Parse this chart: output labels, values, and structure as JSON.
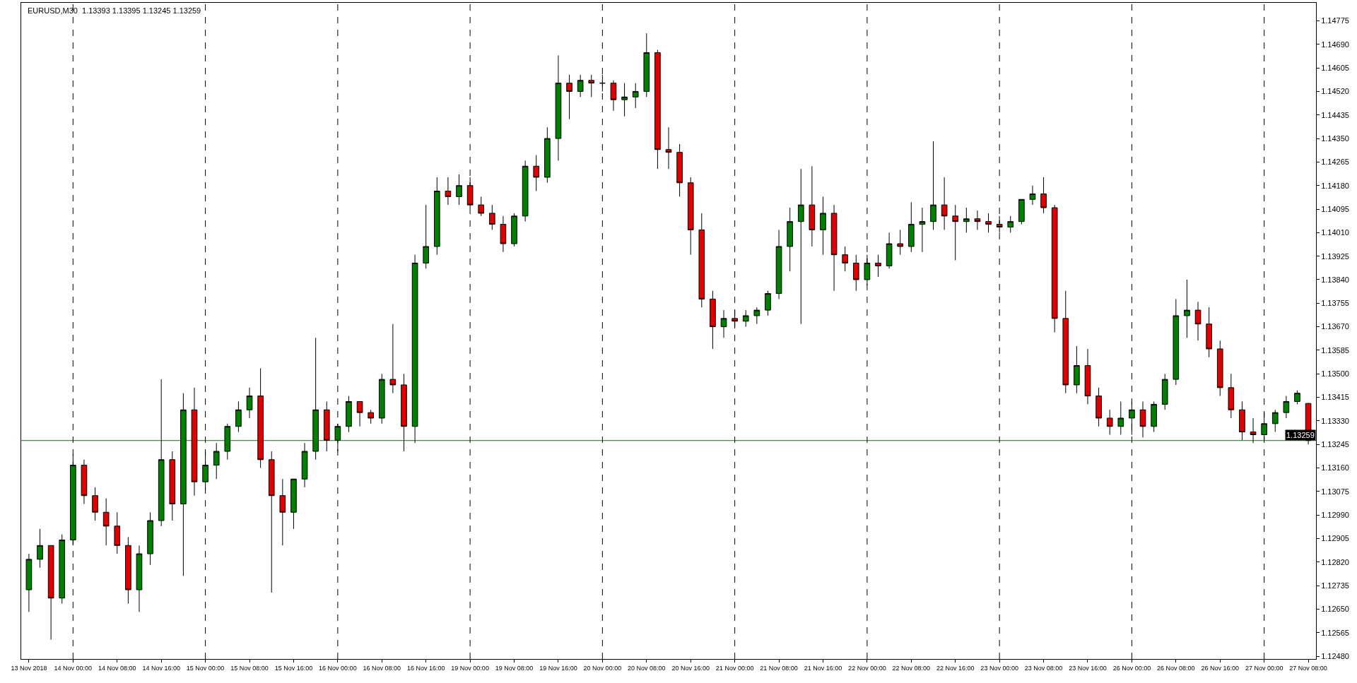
{
  "chart_data": {
    "type": "candlestick",
    "title": "EURUSD,M30  1.13393 1.13395 1.13245 1.13259",
    "categories": [
      "13 Nov 2018",
      null,
      null,
      null,
      "14 Nov 00:00",
      null,
      null,
      null,
      "14 Nov 08:00",
      null,
      null,
      null,
      "14 Nov 16:00",
      null,
      null,
      null,
      "15 Nov 00:00",
      null,
      null,
      null,
      "15 Nov 08:00",
      null,
      null,
      null,
      "15 Nov 16:00",
      null,
      null,
      null,
      "16 Nov 00:00",
      null,
      null,
      null,
      "16 Nov 08:00",
      null,
      null,
      null,
      "16 Nov 16:00",
      null,
      null,
      null,
      "19 Nov 00:00",
      null,
      null,
      null,
      "19 Nov 08:00",
      null,
      null,
      null,
      "19 Nov 16:00",
      null,
      null,
      null,
      "20 Nov 00:00",
      null,
      null,
      null,
      "20 Nov 08:00",
      null,
      null,
      null,
      "20 Nov 16:00",
      null,
      null,
      null,
      "21 Nov 00:00",
      null,
      null,
      null,
      "21 Nov 08:00",
      null,
      null,
      null,
      "21 Nov 16:00",
      null,
      null,
      null,
      "22 Nov 00:00",
      null,
      null,
      null,
      "22 Nov 08:00",
      null,
      null,
      null,
      "22 Nov 16:00",
      null,
      null,
      null,
      "23 Nov 00:00",
      null,
      null,
      null,
      "23 Nov 08:00",
      null,
      null,
      null,
      "23 Nov 16:00",
      null,
      null,
      null,
      "26 Nov 00:00",
      null,
      null,
      null,
      "26 Nov 08:00",
      null,
      null,
      null,
      "26 Nov 16:00",
      null,
      null,
      null,
      "27 Nov 00:00",
      null,
      null,
      null,
      "27 Nov 08:00"
    ],
    "ohlc": [
      [
        1.1272,
        1.1285,
        1.1264,
        1.1283
      ],
      [
        1.1283,
        1.1294,
        1.128,
        1.1288
      ],
      [
        1.1288,
        1.1288,
        1.1254,
        1.1269
      ],
      [
        1.1269,
        1.1292,
        1.1267,
        1.129
      ],
      [
        1.129,
        1.1321,
        1.1288,
        1.1317
      ],
      [
        1.1317,
        1.1319,
        1.1303,
        1.1306
      ],
      [
        1.1306,
        1.1309,
        1.1297,
        1.13
      ],
      [
        1.13,
        1.1305,
        1.1288,
        1.1295
      ],
      [
        1.1295,
        1.13,
        1.1285,
        1.1288
      ],
      [
        1.1288,
        1.1291,
        1.1267,
        1.1272
      ],
      [
        1.1272,
        1.1288,
        1.1264,
        1.1285
      ],
      [
        1.1285,
        1.13,
        1.1281,
        1.1297
      ],
      [
        1.1297,
        1.1348,
        1.1295,
        1.1319
      ],
      [
        1.1319,
        1.1322,
        1.1297,
        1.1303
      ],
      [
        1.1303,
        1.1343,
        1.1277,
        1.1337
      ],
      [
        1.1337,
        1.1345,
        1.1306,
        1.1311
      ],
      [
        1.1311,
        1.1322,
        1.1308,
        1.1317
      ],
      [
        1.1317,
        1.1325,
        1.1312,
        1.1322
      ],
      [
        1.1322,
        1.1332,
        1.1319,
        1.1331
      ],
      [
        1.1331,
        1.134,
        1.1329,
        1.1337
      ],
      [
        1.1337,
        1.1345,
        1.1334,
        1.1342
      ],
      [
        1.1342,
        1.1352,
        1.1316,
        1.1319
      ],
      [
        1.1319,
        1.1322,
        1.1271,
        1.1306
      ],
      [
        1.1306,
        1.1312,
        1.1288,
        1.13
      ],
      [
        1.13,
        1.1312,
        1.1294,
        1.1312
      ],
      [
        1.1312,
        1.1325,
        1.1309,
        1.1322
      ],
      [
        1.1322,
        1.1363,
        1.1319,
        1.1337
      ],
      [
        1.1337,
        1.134,
        1.1322,
        1.1326
      ],
      [
        1.1326,
        1.1332,
        1.1322,
        1.1331
      ],
      [
        1.1331,
        1.1342,
        1.1329,
        1.134
      ],
      [
        1.134,
        1.134,
        1.1331,
        1.1336
      ],
      [
        1.1336,
        1.1337,
        1.1332,
        1.1334
      ],
      [
        1.1334,
        1.135,
        1.1332,
        1.1348
      ],
      [
        1.1348,
        1.1368,
        1.1343,
        1.1346
      ],
      [
        1.1346,
        1.135,
        1.1322,
        1.1331
      ],
      [
        1.1331,
        1.1393,
        1.1325,
        1.139
      ],
      [
        1.139,
        1.1411,
        1.1388,
        1.1396
      ],
      [
        1.1396,
        1.1421,
        1.1393,
        1.1416
      ],
      [
        1.1416,
        1.1421,
        1.1411,
        1.1414
      ],
      [
        1.1414,
        1.1422,
        1.1411,
        1.1418
      ],
      [
        1.1418,
        1.1421,
        1.141,
        1.1411
      ],
      [
        1.1411,
        1.1414,
        1.1407,
        1.1408
      ],
      [
        1.1408,
        1.1411,
        1.1402,
        1.1404
      ],
      [
        1.1404,
        1.1407,
        1.1394,
        1.1397
      ],
      [
        1.1397,
        1.1408,
        1.1396,
        1.1407
      ],
      [
        1.1407,
        1.1427,
        1.1405,
        1.1425
      ],
      [
        1.1425,
        1.1429,
        1.1416,
        1.1421
      ],
      [
        1.1421,
        1.1439,
        1.1419,
        1.1435
      ],
      [
        1.1435,
        1.1465,
        1.1427,
        1.1455
      ],
      [
        1.1455,
        1.1458,
        1.1442,
        1.1452
      ],
      [
        1.1452,
        1.1458,
        1.145,
        1.1456
      ],
      [
        1.1456,
        1.1458,
        1.145,
        1.1455
      ],
      [
        1.1455,
        1.1458,
        1.1452,
        1.1455
      ],
      [
        1.1455,
        1.1456,
        1.1445,
        1.1449
      ],
      [
        1.1449,
        1.1455,
        1.1443,
        1.145
      ],
      [
        1.145,
        1.1455,
        1.1446,
        1.1452
      ],
      [
        1.1452,
        1.1473,
        1.145,
        1.1466
      ],
      [
        1.1466,
        1.1467,
        1.1424,
        1.1431
      ],
      [
        1.1431,
        1.1439,
        1.1424,
        1.143
      ],
      [
        1.143,
        1.1433,
        1.1414,
        1.1419
      ],
      [
        1.1419,
        1.1421,
        1.1393,
        1.1402
      ],
      [
        1.1402,
        1.1408,
        1.1374,
        1.1377
      ],
      [
        1.1377,
        1.138,
        1.1359,
        1.1367
      ],
      [
        1.1367,
        1.1373,
        1.1363,
        1.137
      ],
      [
        1.137,
        1.1373,
        1.1367,
        1.1369
      ],
      [
        1.1369,
        1.1373,
        1.1367,
        1.1371
      ],
      [
        1.1371,
        1.1374,
        1.1368,
        1.1373
      ],
      [
        1.1373,
        1.138,
        1.1371,
        1.1379
      ],
      [
        1.1379,
        1.1402,
        1.1377,
        1.1396
      ],
      [
        1.1396,
        1.141,
        1.1387,
        1.1405
      ],
      [
        1.1405,
        1.1424,
        1.1368,
        1.1411
      ],
      [
        1.1411,
        1.1425,
        1.1396,
        1.1402
      ],
      [
        1.1402,
        1.1414,
        1.1393,
        1.1408
      ],
      [
        1.1408,
        1.1411,
        1.138,
        1.1393
      ],
      [
        1.1393,
        1.1396,
        1.1387,
        1.139
      ],
      [
        1.139,
        1.1393,
        1.138,
        1.1384
      ],
      [
        1.1384,
        1.1393,
        1.1382,
        1.139
      ],
      [
        1.139,
        1.1393,
        1.1385,
        1.1389
      ],
      [
        1.1389,
        1.1401,
        1.1388,
        1.1397
      ],
      [
        1.1397,
        1.1402,
        1.1393,
        1.1396
      ],
      [
        1.1396,
        1.1412,
        1.1394,
        1.1404
      ],
      [
        1.1404,
        1.141,
        1.1394,
        1.1405
      ],
      [
        1.1405,
        1.1434,
        1.1402,
        1.1411
      ],
      [
        1.1411,
        1.1421,
        1.1402,
        1.1407
      ],
      [
        1.1407,
        1.1411,
        1.1391,
        1.1405
      ],
      [
        1.1405,
        1.141,
        1.1401,
        1.1406
      ],
      [
        1.1406,
        1.1409,
        1.1402,
        1.1405
      ],
      [
        1.1405,
        1.1408,
        1.1401,
        1.1404
      ],
      [
        1.1404,
        1.1407,
        1.1401,
        1.1403
      ],
      [
        1.1403,
        1.1407,
        1.1401,
        1.1405
      ],
      [
        1.1405,
        1.1413,
        1.1404,
        1.1413
      ],
      [
        1.1413,
        1.1418,
        1.1411,
        1.1415
      ],
      [
        1.1415,
        1.1421,
        1.1408,
        1.141
      ],
      [
        1.141,
        1.1411,
        1.1365,
        1.137
      ],
      [
        1.137,
        1.138,
        1.1343,
        1.1346
      ],
      [
        1.1346,
        1.136,
        1.1343,
        1.1353
      ],
      [
        1.1353,
        1.1359,
        1.1339,
        1.1342
      ],
      [
        1.1342,
        1.1345,
        1.1331,
        1.1334
      ],
      [
        1.1334,
        1.1337,
        1.1328,
        1.1331
      ],
      [
        1.1331,
        1.134,
        1.1328,
        1.1334
      ],
      [
        1.1334,
        1.134,
        1.1328,
        1.1337
      ],
      [
        1.1337,
        1.134,
        1.1327,
        1.1331
      ],
      [
        1.1331,
        1.134,
        1.1329,
        1.1339
      ],
      [
        1.1339,
        1.135,
        1.1337,
        1.1348
      ],
      [
        1.1348,
        1.1377,
        1.1346,
        1.1371
      ],
      [
        1.1371,
        1.1384,
        1.1363,
        1.1373
      ],
      [
        1.1373,
        1.1376,
        1.1362,
        1.1368
      ],
      [
        1.1368,
        1.1374,
        1.1356,
        1.1359
      ],
      [
        1.1359,
        1.1362,
        1.1342,
        1.1345
      ],
      [
        1.1345,
        1.135,
        1.1334,
        1.1337
      ],
      [
        1.1337,
        1.134,
        1.1326,
        1.1329
      ],
      [
        1.1329,
        1.1334,
        1.1325,
        1.1328
      ],
      [
        1.1328,
        1.1336,
        1.1326,
        1.1332
      ],
      [
        1.1332,
        1.1337,
        1.1329,
        1.1336
      ],
      [
        1.1336,
        1.1342,
        1.1334,
        1.134
      ],
      [
        1.134,
        1.1344,
        1.1339,
        1.1343
      ],
      [
        1.13393,
        1.13395,
        1.13245,
        1.13259
      ]
    ],
    "ylim": [
      1.1247,
      1.1484
    ],
    "yticks": [
      {
        "value": 1.1248,
        "label": "1.12480"
      },
      {
        "value": 1.12565,
        "label": "1.12565"
      },
      {
        "value": 1.1265,
        "label": "1.12650"
      },
      {
        "value": 1.12735,
        "label": "1.12735"
      },
      {
        "value": 1.1282,
        "label": "1.12820"
      },
      {
        "value": 1.12905,
        "label": "1.12905"
      },
      {
        "value": 1.1299,
        "label": "1.12990"
      },
      {
        "value": 1.13075,
        "label": "1.13075"
      },
      {
        "value": 1.1316,
        "label": "1.13160"
      },
      {
        "value": 1.13245,
        "label": "1.13245"
      },
      {
        "value": 1.1333,
        "label": "1.13330"
      },
      {
        "value": 1.13415,
        "label": "1.13415"
      },
      {
        "value": 1.135,
        "label": "1.13500"
      },
      {
        "value": 1.13585,
        "label": "1.13585"
      },
      {
        "value": 1.1367,
        "label": "1.13670"
      },
      {
        "value": 1.13755,
        "label": "1.13755"
      },
      {
        "value": 1.1384,
        "label": "1.13840"
      },
      {
        "value": 1.13925,
        "label": "1.13925"
      },
      {
        "value": 1.1401,
        "label": "1.14010"
      },
      {
        "value": 1.14095,
        "label": "1.14095"
      },
      {
        "value": 1.1418,
        "label": "1.14180"
      },
      {
        "value": 1.14265,
        "label": "1.14265"
      },
      {
        "value": 1.1435,
        "label": "1.14350"
      },
      {
        "value": 1.14435,
        "label": "1.14435"
      },
      {
        "value": 1.1452,
        "label": "1.14520"
      },
      {
        "value": 1.14605,
        "label": "1.14605"
      },
      {
        "value": 1.1469,
        "label": "1.14690"
      },
      {
        "value": 1.14775,
        "label": "1.14775"
      }
    ],
    "ref_lines": [
      {
        "axis": "y",
        "value": 1.13259,
        "label": "1.13259",
        "color": "#008000",
        "line_style": "solid"
      },
      {
        "axis": "x",
        "value": "14 Nov 00:00",
        "color": "#000000",
        "line_style": "dashed"
      },
      {
        "axis": "x",
        "value": "15 Nov 00:00",
        "color": "#000000",
        "line_style": "dashed"
      },
      {
        "axis": "x",
        "value": "16 Nov 00:00",
        "color": "#000000",
        "line_style": "dashed"
      },
      {
        "axis": "x",
        "value": "19 Nov 00:00",
        "color": "#000000",
        "line_style": "dashed"
      },
      {
        "axis": "x",
        "value": "20 Nov 00:00",
        "color": "#000000",
        "line_style": "dashed"
      },
      {
        "axis": "x",
        "value": "21 Nov 00:00",
        "color": "#000000",
        "line_style": "dashed"
      },
      {
        "axis": "x",
        "value": "22 Nov 00:00",
        "color": "#000000",
        "line_style": "dashed"
      },
      {
        "axis": "x",
        "value": "23 Nov 00:00",
        "color": "#000000",
        "line_style": "dashed"
      },
      {
        "axis": "x",
        "value": "26 Nov 00:00",
        "color": "#000000",
        "line_style": "dashed"
      },
      {
        "axis": "x",
        "value": "27 Nov 00:00",
        "color": "#000000",
        "line_style": "dashed"
      }
    ],
    "grid": false
  }
}
